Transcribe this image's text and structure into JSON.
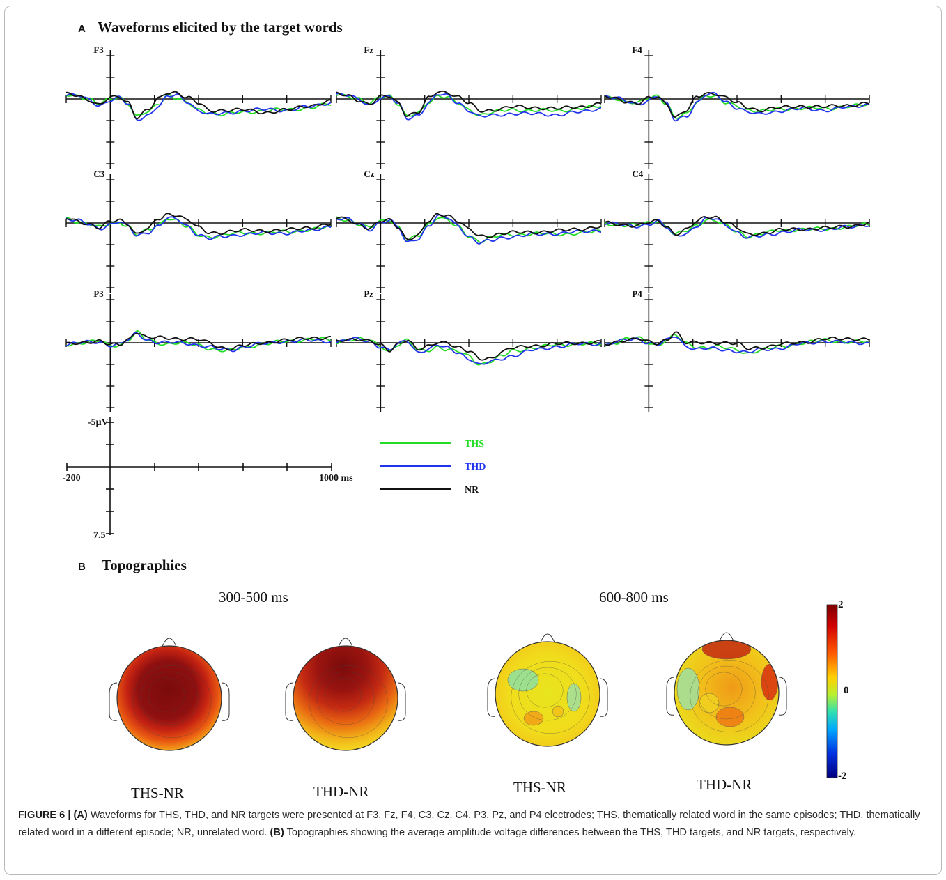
{
  "panel_a": {
    "letter": "A",
    "title": "Waveforms elicited by the target words",
    "electrodes": [
      "F3",
      "Fz",
      "F4",
      "C3",
      "Cz",
      "C4",
      "P3",
      "Pz",
      "P4"
    ],
    "scale": {
      "top": "-5μV",
      "bottom": "7.5",
      "left": "-200",
      "right": "1000 ms"
    },
    "legend": [
      {
        "name": "THS",
        "color": "#22dd22"
      },
      {
        "name": "THD",
        "color": "#2233ee"
      },
      {
        "name": "NR",
        "color": "#111111"
      }
    ]
  },
  "panel_b": {
    "letter": "B",
    "title": "Topographies",
    "windows": [
      "300-500 ms",
      "600-800 ms"
    ],
    "maps": [
      "THS-NR",
      "THD-NR",
      "THS-NR",
      "THD-NR"
    ],
    "colorbar": {
      "max": "2",
      "mid": "0",
      "min": "-2"
    }
  },
  "caption": {
    "label": "FIGURE 6 | ",
    "a_tag": "(A)",
    "a_text": " Waveforms for THS, THD, and NR targets were presented at F3, Fz, F4, C3, Cz, C4, P3, Pz, and P4 electrodes; THS, thematically related word in the same episodes; THD, thematically related word in a different episode; NR, unrelated word. ",
    "b_tag": "(B)",
    "b_text": " Topographies showing the average amplitude voltage differences between the THS, THD targets, and NR targets, respectively."
  },
  "chart_data": {
    "type": "line",
    "x_unit": "ms",
    "y_unit": "μV",
    "xlim": [
      -200,
      1000
    ],
    "ylim": [
      -5,
      7.5
    ],
    "y_inverted": true,
    "x_knots": [
      -200,
      -150,
      -100,
      -50,
      0,
      40,
      80,
      120,
      170,
      220,
      260,
      300,
      350,
      400,
      450,
      500,
      550,
      600,
      700,
      800,
      900,
      1000
    ],
    "electrodes": {
      "F3": [
        {
          "name": "THS",
          "values": [
            -1.0,
            -0.8,
            0.0,
            1.2,
            0.0,
            -0.5,
            1.0,
            4.0,
            3.0,
            1.0,
            -1.0,
            -0.2,
            1.0,
            2.5,
            3.0,
            3.5,
            3.3,
            3.0,
            2.6,
            2.4,
            2.0,
            1.2
          ]
        },
        {
          "name": "THD",
          "values": [
            -1.0,
            -0.8,
            0.2,
            1.5,
            0.2,
            -0.3,
            1.2,
            4.7,
            3.6,
            1.5,
            -0.5,
            -0.8,
            0.6,
            2.5,
            3.5,
            3.4,
            3.0,
            2.6,
            2.4,
            2.5,
            1.8,
            0.8
          ]
        },
        {
          "name": "NR",
          "values": [
            -1.0,
            -0.8,
            0.1,
            1.3,
            -0.2,
            -0.4,
            0.7,
            4.0,
            2.5,
            0.0,
            -1.4,
            -1.5,
            -0.4,
            1.0,
            2.7,
            2.5,
            2.4,
            2.5,
            3.0,
            2.5,
            1.5,
            0.6
          ]
        }
      ],
      "Fz": [
        {
          "name": "THS",
          "values": [
            -1.1,
            -0.8,
            0.0,
            1.2,
            -0.5,
            -0.8,
            1.0,
            4.0,
            3.3,
            0.6,
            -0.8,
            -0.5,
            1.0,
            2.5,
            3.5,
            3.0,
            2.7,
            2.5,
            2.5,
            2.7,
            2.1,
            1.7
          ]
        },
        {
          "name": "THD",
          "values": [
            -1.1,
            -0.8,
            0.2,
            1.4,
            -0.3,
            -0.6,
            1.2,
            4.4,
            3.6,
            0.8,
            -1.0,
            -0.7,
            0.8,
            2.5,
            4.0,
            3.8,
            3.5,
            3.2,
            3.4,
            3.5,
            3.0,
            2.1
          ]
        },
        {
          "name": "NR",
          "values": [
            -1.1,
            -0.8,
            0.2,
            1.2,
            -0.4,
            -0.6,
            0.8,
            3.6,
            3.1,
            -0.2,
            -1.6,
            -1.6,
            -0.5,
            1.0,
            2.7,
            2.5,
            2.1,
            1.8,
            1.9,
            2.2,
            1.7,
            1.2
          ]
        }
      ],
      "F4": [
        {
          "name": "THS",
          "values": [
            -0.5,
            -0.2,
            0.8,
            1.0,
            -0.2,
            -0.8,
            1.0,
            4.3,
            3.5,
            0.6,
            -1.0,
            -0.6,
            1.0,
            1.6,
            2.4,
            2.7,
            2.6,
            2.3,
            2.0,
            2.2,
            1.6,
            1.4
          ]
        },
        {
          "name": "THD",
          "values": [
            -0.6,
            -0.2,
            0.6,
            1.2,
            0.2,
            -0.6,
            1.2,
            4.7,
            3.8,
            0.8,
            -0.9,
            -1.0,
            0.6,
            1.9,
            3.0,
            3.5,
            3.0,
            2.6,
            2.2,
            2.5,
            1.9,
            1.2
          ]
        },
        {
          "name": "NR",
          "values": [
            -0.5,
            -0.1,
            0.5,
            1.0,
            -0.1,
            -0.4,
            1.0,
            4.0,
            2.6,
            -0.4,
            -1.2,
            -1.3,
            -0.4,
            1.0,
            2.0,
            2.5,
            2.1,
            2.0,
            1.6,
            1.8,
            1.4,
            1.0
          ]
        }
      ],
      "C3": [
        {
          "name": "THS",
          "values": [
            -1.0,
            -0.4,
            0.2,
            1.0,
            0.2,
            -0.3,
            0.7,
            2.6,
            1.7,
            0.3,
            -1.2,
            -0.6,
            1.0,
            2.7,
            3.1,
            2.8,
            2.5,
            2.2,
            2.2,
            2.0,
            1.5,
            0.9
          ]
        },
        {
          "name": "THD",
          "values": [
            -1.0,
            -0.5,
            0.3,
            1.2,
            0.3,
            -0.3,
            0.8,
            2.9,
            2.0,
            0.6,
            -1.0,
            -0.8,
            0.7,
            2.6,
            3.5,
            3.2,
            2.8,
            2.5,
            2.3,
            2.2,
            1.8,
            0.7
          ]
        },
        {
          "name": "NR",
          "values": [
            -1.0,
            -0.4,
            0.1,
            1.0,
            -0.2,
            -0.6,
            0.2,
            2.4,
            1.2,
            -0.8,
            -1.9,
            -1.9,
            -0.8,
            1.1,
            2.3,
            2.1,
            1.8,
            1.7,
            1.7,
            1.6,
            1.0,
            0.3
          ]
        }
      ],
      "Cz": [
        {
          "name": "THS",
          "values": [
            -1.1,
            -0.8,
            0.3,
            1.2,
            -0.4,
            -0.8,
            0.9,
            3.9,
            3.0,
            0.3,
            -1.4,
            -0.8,
            1.0,
            3.0,
            4.0,
            3.2,
            2.8,
            2.7,
            2.3,
            2.6,
            2.2,
            2.0
          ]
        },
        {
          "name": "THD",
          "values": [
            -1.1,
            -0.8,
            0.3,
            1.4,
            -0.2,
            -0.6,
            1.1,
            4.4,
            3.4,
            0.5,
            -1.4,
            -1.2,
            0.5,
            3.0,
            4.5,
            4.0,
            3.3,
            3.0,
            2.6,
            2.3,
            2.0,
            1.6
          ]
        },
        {
          "name": "NR",
          "values": [
            -1.1,
            -0.8,
            0.2,
            1.2,
            -0.3,
            -0.6,
            0.8,
            3.6,
            2.8,
            -0.4,
            -1.9,
            -1.9,
            -0.5,
            1.5,
            3.0,
            2.8,
            2.3,
            2.2,
            2.0,
            1.8,
            1.3,
            0.9
          ]
        }
      ],
      "C4": [
        {
          "name": "THS",
          "values": [
            0.0,
            0.4,
            0.5,
            0.6,
            0.0,
            -0.6,
            0.8,
            2.6,
            1.8,
            0.5,
            -0.8,
            -0.6,
            0.7,
            2.0,
            2.9,
            2.5,
            2.1,
            1.6,
            1.4,
            1.4,
            0.8,
            0.4
          ]
        },
        {
          "name": "THD",
          "values": [
            -0.1,
            0.2,
            0.6,
            0.7,
            0.2,
            -0.4,
            1.0,
            3.0,
            2.2,
            0.6,
            -0.8,
            -0.9,
            0.4,
            2.0,
            3.4,
            3.0,
            2.5,
            2.0,
            1.6,
            1.4,
            1.0,
            0.3
          ]
        },
        {
          "name": "NR",
          "values": [
            0.0,
            0.3,
            0.4,
            0.6,
            0.0,
            -0.4,
            0.7,
            2.4,
            1.5,
            -0.3,
            -1.4,
            -1.4,
            -0.3,
            1.2,
            2.6,
            2.3,
            2.0,
            1.6,
            1.3,
            1.2,
            0.7,
            0.2
          ]
        }
      ],
      "P3": [
        {
          "name": "THS",
          "values": [
            0.4,
            0.1,
            -0.2,
            -0.3,
            0.6,
            0.5,
            -0.7,
            -2.3,
            -0.5,
            0.1,
            0.2,
            0.0,
            0.2,
            0.6,
            1.2,
            1.7,
            1.8,
            1.0,
            0.2,
            -0.3,
            -0.8,
            -0.7
          ]
        },
        {
          "name": "THD",
          "values": [
            0.4,
            0.1,
            -0.1,
            -0.2,
            0.5,
            0.4,
            -0.6,
            -2.1,
            -0.6,
            -0.1,
            0.0,
            0.0,
            0.1,
            0.5,
            1.0,
            1.5,
            1.6,
            0.9,
            0.2,
            -0.4,
            -0.5,
            -0.4
          ]
        },
        {
          "name": "NR",
          "values": [
            0.4,
            0.1,
            -0.3,
            -0.4,
            0.5,
            0.5,
            -0.8,
            -2.5,
            -1.1,
            -1.1,
            -1.1,
            -1.0,
            -0.9,
            -0.6,
            0.0,
            1.0,
            1.3,
            0.7,
            -0.1,
            -0.5,
            -1.2,
            -1.0
          ]
        }
      ],
      "Pz": [
        {
          "name": "THS",
          "values": [
            -0.1,
            -0.8,
            -0.9,
            -0.4,
            0.8,
            1.9,
            0.3,
            -0.5,
            1.8,
            1.6,
            0.8,
            1.5,
            2.0,
            3.0,
            4.8,
            4.1,
            3.0,
            1.8,
            1.1,
            0.5,
            0.2,
            0.3
          ]
        },
        {
          "name": "THD",
          "values": [
            -0.1,
            -0.7,
            -0.8,
            -0.3,
            0.8,
            1.7,
            0.3,
            -0.4,
            2.1,
            1.3,
            0.6,
            1.2,
            2.1,
            3.5,
            5.0,
            4.3,
            3.5,
            2.8,
            1.6,
            0.8,
            0.3,
            0.2
          ]
        },
        {
          "name": "NR",
          "values": [
            -0.1,
            -0.7,
            -0.9,
            -0.5,
            0.7,
            1.8,
            0.2,
            -0.8,
            1.5,
            0.9,
            -0.1,
            -0.2,
            1.0,
            2.0,
            3.6,
            3.4,
            2.0,
            1.2,
            0.6,
            0.3,
            0.0,
            -0.1
          ]
        }
      ],
      "P4": [
        {
          "name": "THS",
          "values": [
            0.6,
            -0.1,
            -0.9,
            -1.0,
            0.0,
            0.6,
            -0.7,
            -1.7,
            0.3,
            1.0,
            1.0,
            0.8,
            1.2,
            1.7,
            2.3,
            1.7,
            1.3,
            0.8,
            0.0,
            -0.6,
            -0.2,
            -0.2
          ]
        },
        {
          "name": "THD",
          "values": [
            0.6,
            -0.1,
            -0.6,
            -0.9,
            0.0,
            0.4,
            -0.5,
            -1.5,
            0.7,
            1.4,
            1.3,
            1.4,
            1.6,
            1.8,
            2.2,
            1.6,
            1.4,
            1.1,
            0.2,
            -0.4,
            0.0,
            0.0
          ]
        },
        {
          "name": "NR",
          "values": [
            0.6,
            -0.1,
            -0.8,
            -1.0,
            -0.1,
            0.3,
            -0.7,
            -2.5,
            0.0,
            0.1,
            0.0,
            -0.1,
            0.0,
            0.3,
            1.3,
            1.0,
            0.8,
            0.4,
            -0.2,
            -0.8,
            -1.0,
            -0.7
          ]
        }
      ]
    }
  }
}
